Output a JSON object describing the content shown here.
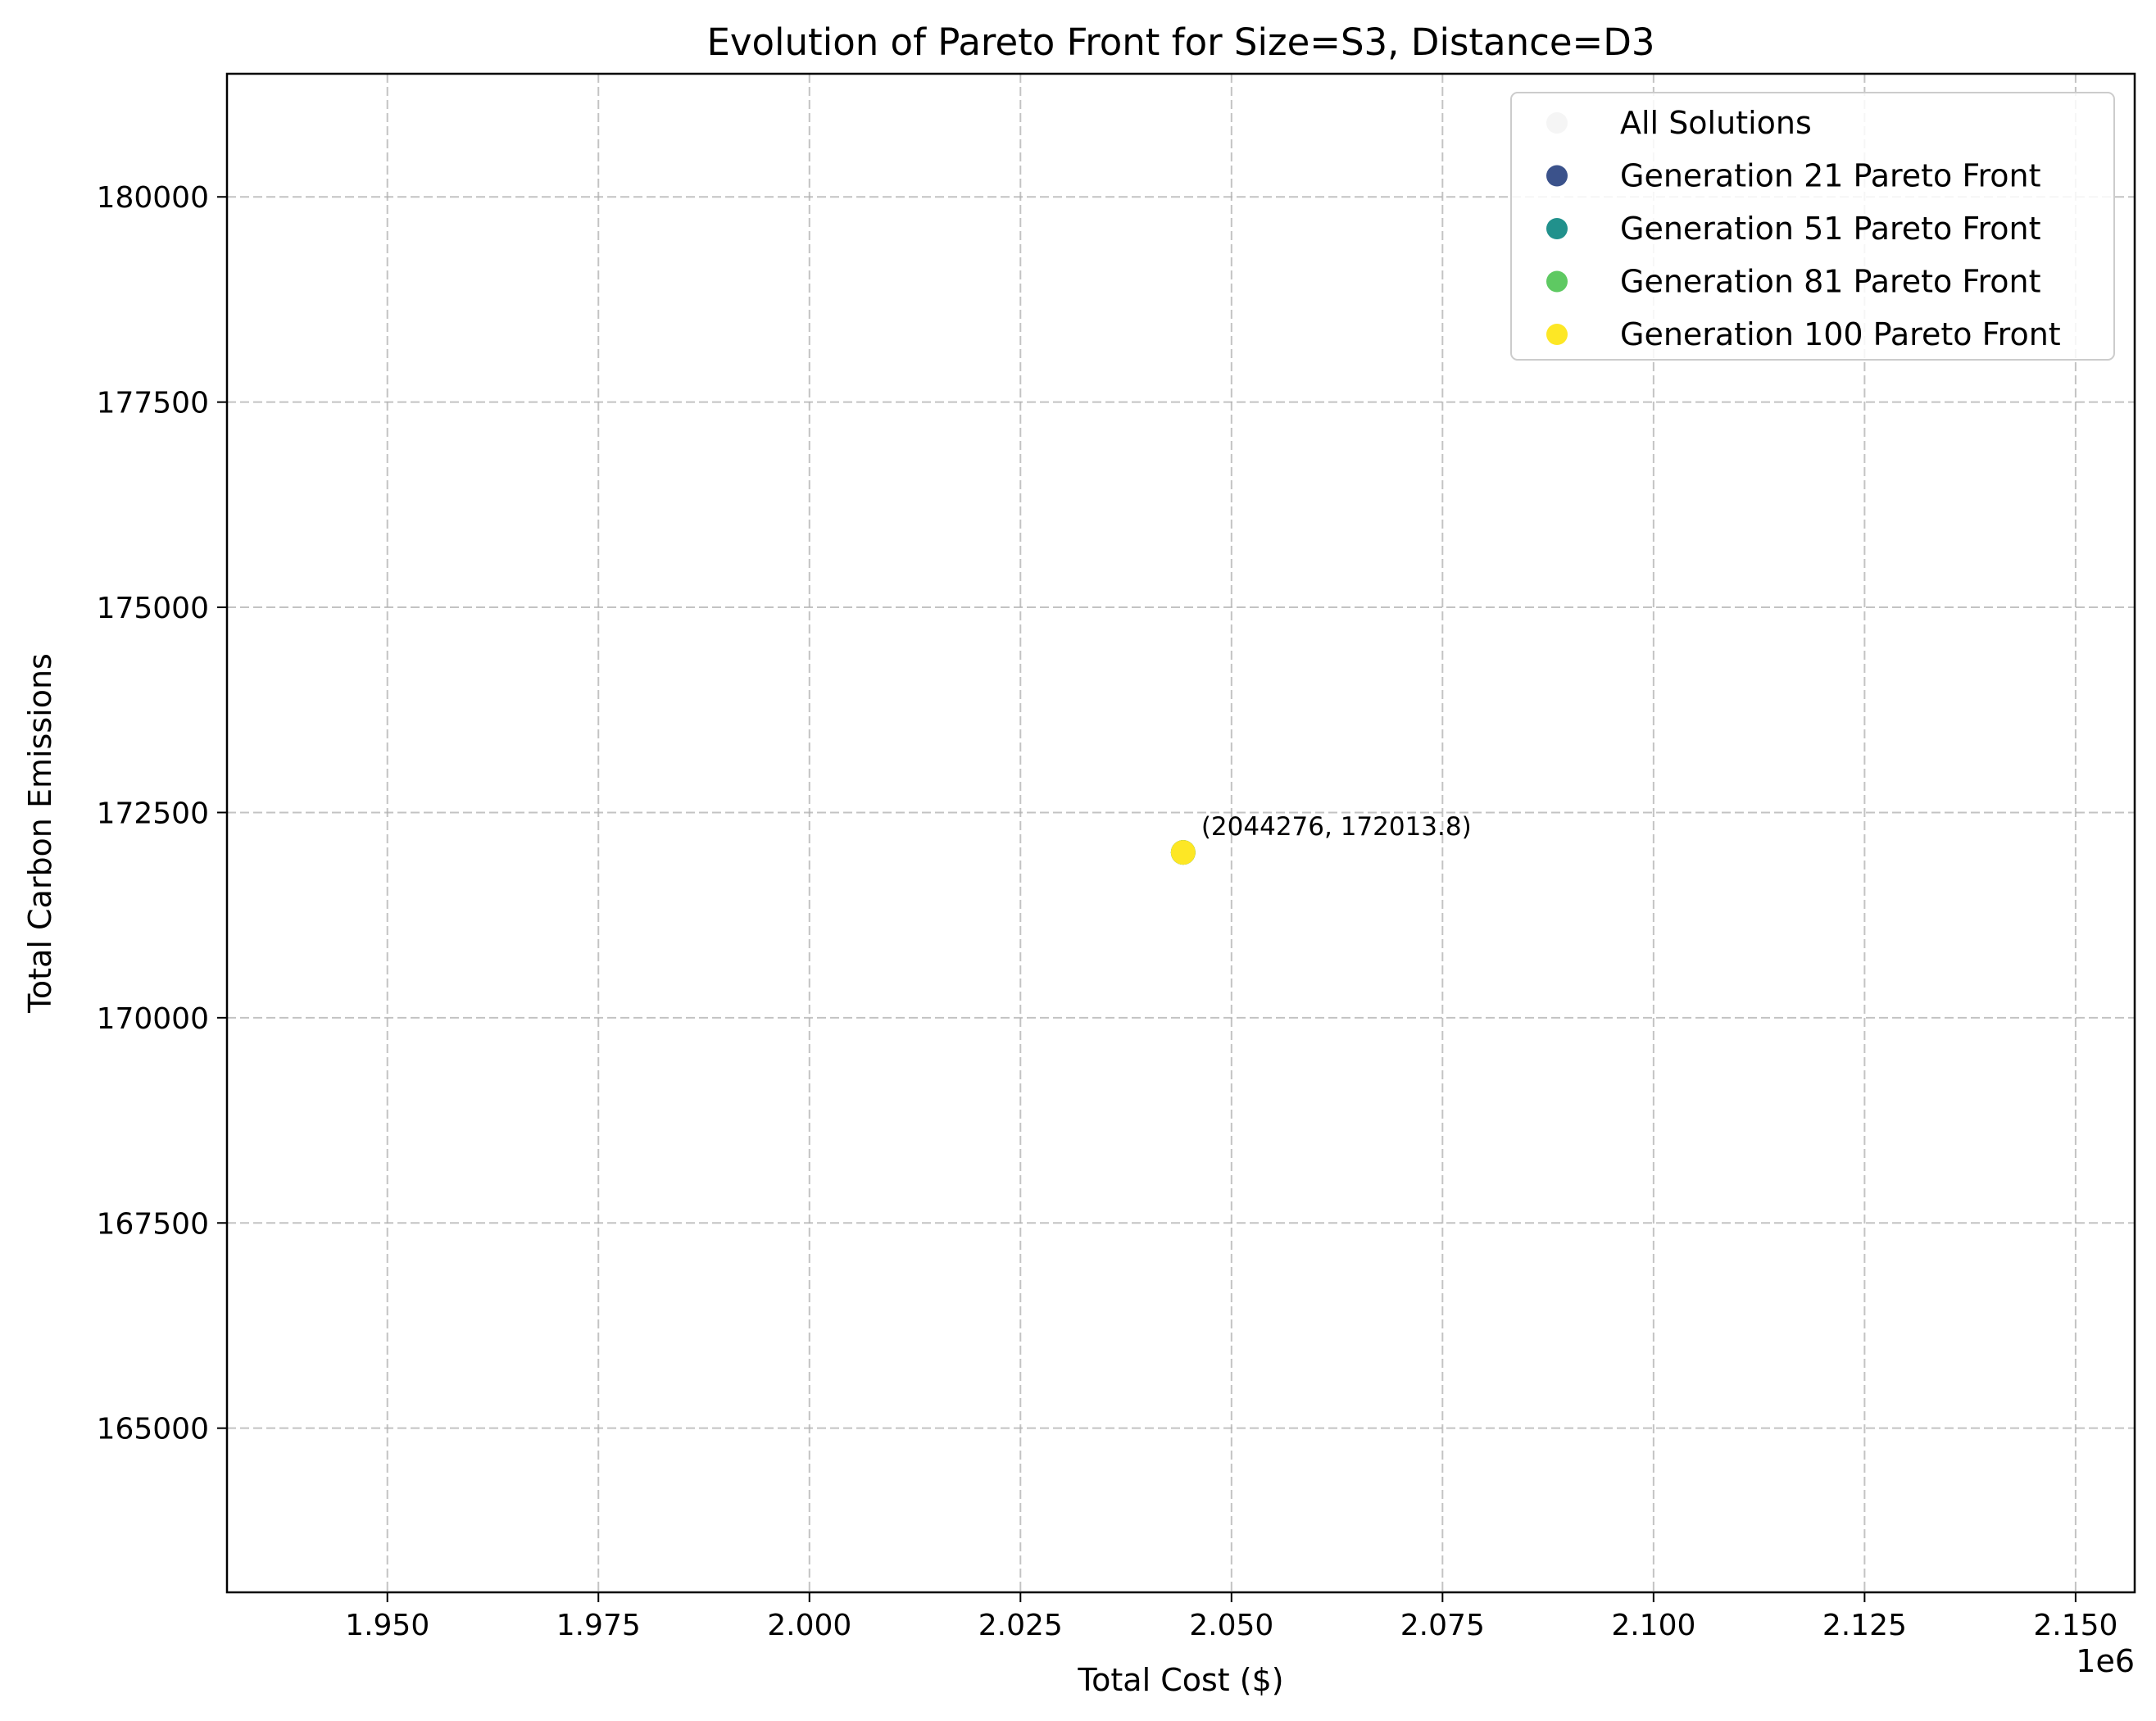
{
  "chart_data": {
    "type": "scatter",
    "title": "Evolution of Pareto Front for Size=S3, Distance=D3",
    "xlabel": "Total Cost ($)",
    "ylabel": "Total Carbon Emissions",
    "x_offset_label": "1e6",
    "xlim": [
      1931000,
      2157000
    ],
    "ylim": [
      163000,
      181500
    ],
    "x_ticks": [
      1950000,
      1975000,
      2000000,
      2025000,
      2050000,
      2075000,
      2100000,
      2125000,
      2150000
    ],
    "x_tick_labels": [
      "1.950",
      "1.975",
      "2.000",
      "2.025",
      "2.050",
      "2.075",
      "2.100",
      "2.125",
      "2.150"
    ],
    "y_ticks": [
      165000,
      167500,
      170000,
      172500,
      175000,
      177500,
      180000
    ],
    "y_tick_labels": [
      "165000",
      "167500",
      "170000",
      "172500",
      "175000",
      "177500",
      "180000"
    ],
    "grid": true,
    "legend_position": "top-right",
    "series": [
      {
        "name": "All Solutions",
        "color": "#ebebeb",
        "points": [
          [
            2044276,
            172013.8
          ]
        ]
      },
      {
        "name": "Generation 21 Pareto Front",
        "color": "#3b528b",
        "points": [
          [
            2044276,
            172013.8
          ]
        ]
      },
      {
        "name": "Generation 51 Pareto Front",
        "color": "#21918c",
        "points": [
          [
            2044276,
            172013.8
          ]
        ]
      },
      {
        "name": "Generation 81 Pareto Front",
        "color": "#5ec962",
        "points": [
          [
            2044276,
            172013.8
          ]
        ]
      },
      {
        "name": "Generation 100 Pareto Front",
        "color": "#fde725",
        "points": [
          [
            2044276,
            172013.8
          ]
        ]
      }
    ],
    "annotations": [
      {
        "text": "(2044276, 172013.8)",
        "x": 2044276,
        "y": 172013.8
      }
    ]
  }
}
